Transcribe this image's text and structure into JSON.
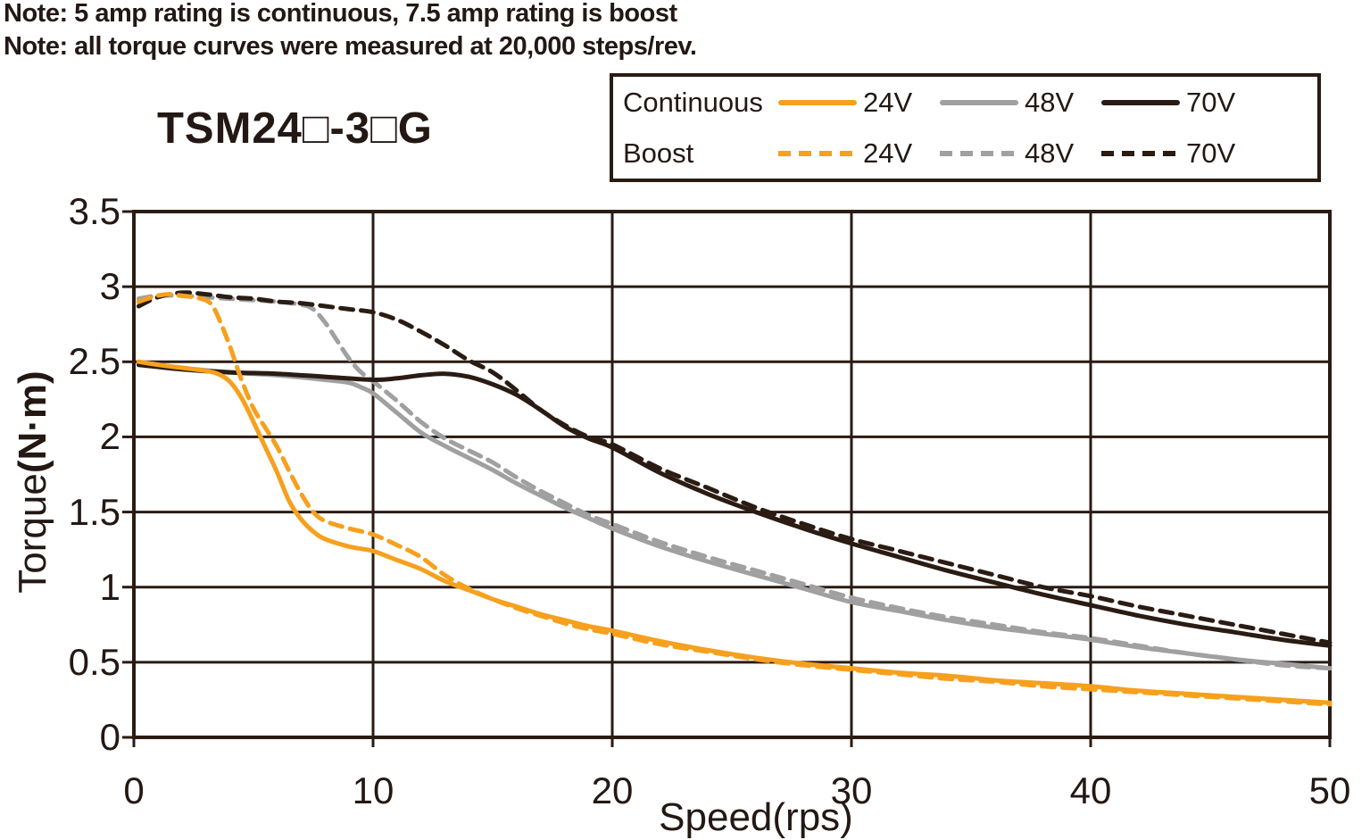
{
  "notes": [
    "Note: 5 amp rating is continuous, 7.5 amp rating is boost",
    "Note: all torque curves were measured at 20,000 steps/rev."
  ],
  "title": "TSM24□-3□G",
  "axis": {
    "y_prefix": "Torque",
    "y_bold": "(N·m)"
  },
  "colors": {
    "orange_24v": "#f6a01e",
    "gray_48v": "#a0a0a0",
    "dark_70v": "#2a1b13",
    "text": "#231813",
    "grid": "#2a1b13"
  },
  "legend": {
    "rows": [
      {
        "label": "Continuous",
        "style": "solid",
        "entries": [
          {
            "label": "24V",
            "color": "#f6a01e"
          },
          {
            "label": "48V",
            "color": "#a0a0a0"
          },
          {
            "label": "70V",
            "color": "#2a1b13"
          }
        ]
      },
      {
        "label": "Boost",
        "style": "dashed",
        "entries": [
          {
            "label": "24V",
            "color": "#f6a01e"
          },
          {
            "label": "48V",
            "color": "#a0a0a0"
          },
          {
            "label": "70V",
            "color": "#2a1b13"
          }
        ]
      }
    ]
  },
  "chart_data": {
    "type": "line",
    "title": "TSM24□-3□G",
    "xlabel": "Speed(rps)",
    "ylabel": "Torque(N·m)",
    "xlim": [
      0,
      50
    ],
    "ylim": [
      0,
      3.5
    ],
    "xticks": [
      "0",
      "10",
      "20",
      "30",
      "40",
      "50"
    ],
    "yticks": [
      "3.5",
      "3",
      "2.5",
      "2",
      "1.5",
      "1",
      "0.5",
      "0"
    ],
    "grid": true,
    "legend_position": "top-right",
    "x_unit": "rps",
    "y_unit": "N·m",
    "series": [
      {
        "name": "Continuous 48V",
        "rating": "continuous",
        "voltage": "48V",
        "color": "#a0a0a0",
        "dash": false,
        "points": [
          [
            0.2,
            2.5
          ],
          [
            2,
            2.46
          ],
          [
            4,
            2.43
          ],
          [
            6,
            2.41
          ],
          [
            8,
            2.38
          ],
          [
            9,
            2.36
          ],
          [
            9.5,
            2.33
          ],
          [
            10,
            2.29
          ],
          [
            11,
            2.16
          ],
          [
            12,
            2.03
          ],
          [
            13,
            1.94
          ],
          [
            14,
            1.86
          ],
          [
            15,
            1.78
          ],
          [
            16,
            1.69
          ],
          [
            17,
            1.61
          ],
          [
            18,
            1.53
          ],
          [
            19,
            1.46
          ],
          [
            20,
            1.39
          ],
          [
            22,
            1.27
          ],
          [
            24,
            1.17
          ],
          [
            26,
            1.08
          ],
          [
            28,
            0.99
          ],
          [
            30,
            0.9
          ],
          [
            32,
            0.84
          ],
          [
            34,
            0.78
          ],
          [
            36,
            0.73
          ],
          [
            38,
            0.69
          ],
          [
            40,
            0.65
          ],
          [
            42,
            0.6
          ],
          [
            44,
            0.56
          ],
          [
            46,
            0.52
          ],
          [
            48,
            0.49
          ],
          [
            50,
            0.46
          ]
        ]
      },
      {
        "name": "Boost 48V",
        "rating": "boost",
        "voltage": "48V",
        "color": "#a0a0a0",
        "dash": true,
        "points": [
          [
            0.2,
            2.92
          ],
          [
            1,
            2.94
          ],
          [
            2,
            2.94
          ],
          [
            3,
            2.93
          ],
          [
            4,
            2.92
          ],
          [
            5,
            2.91
          ],
          [
            6,
            2.9
          ],
          [
            7,
            2.88
          ],
          [
            7.5,
            2.85
          ],
          [
            8,
            2.76
          ],
          [
            8.5,
            2.64
          ],
          [
            9,
            2.52
          ],
          [
            9.5,
            2.43
          ],
          [
            10,
            2.37
          ],
          [
            11,
            2.24
          ],
          [
            12,
            2.1
          ],
          [
            13,
            1.99
          ],
          [
            14,
            1.91
          ],
          [
            15,
            1.83
          ],
          [
            16,
            1.73
          ],
          [
            17,
            1.64
          ],
          [
            18,
            1.56
          ],
          [
            19,
            1.48
          ],
          [
            20,
            1.42
          ],
          [
            22,
            1.3
          ],
          [
            24,
            1.2
          ],
          [
            26,
            1.11
          ],
          [
            28,
            1.02
          ],
          [
            30,
            0.93
          ],
          [
            32,
            0.86
          ],
          [
            34,
            0.8
          ],
          [
            36,
            0.75
          ],
          [
            38,
            0.7
          ],
          [
            40,
            0.66
          ],
          [
            42,
            0.61
          ],
          [
            44,
            0.56
          ],
          [
            46,
            0.52
          ],
          [
            48,
            0.48
          ],
          [
            50,
            0.46
          ]
        ]
      },
      {
        "name": "Continuous 70V",
        "rating": "continuous",
        "voltage": "70V",
        "color": "#2a1b13",
        "dash": false,
        "points": [
          [
            0.2,
            2.48
          ],
          [
            2,
            2.45
          ],
          [
            4,
            2.43
          ],
          [
            6,
            2.42
          ],
          [
            8,
            2.4
          ],
          [
            10,
            2.38
          ],
          [
            11,
            2.39
          ],
          [
            12,
            2.41
          ],
          [
            13,
            2.42
          ],
          [
            14,
            2.4
          ],
          [
            15,
            2.35
          ],
          [
            16,
            2.28
          ],
          [
            17,
            2.18
          ],
          [
            18,
            2.07
          ],
          [
            19,
            1.99
          ],
          [
            20,
            1.93
          ],
          [
            22,
            1.76
          ],
          [
            24,
            1.62
          ],
          [
            26,
            1.5
          ],
          [
            28,
            1.39
          ],
          [
            30,
            1.29
          ],
          [
            32,
            1.2
          ],
          [
            34,
            1.11
          ],
          [
            36,
            1.03
          ],
          [
            38,
            0.95
          ],
          [
            40,
            0.88
          ],
          [
            42,
            0.81
          ],
          [
            44,
            0.75
          ],
          [
            46,
            0.7
          ],
          [
            48,
            0.65
          ],
          [
            50,
            0.61
          ]
        ]
      },
      {
        "name": "Boost 70V",
        "rating": "boost",
        "voltage": "70V",
        "color": "#2a1b13",
        "dash": true,
        "points": [
          [
            0.2,
            2.87
          ],
          [
            1,
            2.93
          ],
          [
            2,
            2.96
          ],
          [
            3,
            2.95
          ],
          [
            4,
            2.93
          ],
          [
            5,
            2.92
          ],
          [
            6,
            2.9
          ],
          [
            7,
            2.89
          ],
          [
            8,
            2.87
          ],
          [
            9,
            2.85
          ],
          [
            10,
            2.83
          ],
          [
            11,
            2.78
          ],
          [
            12,
            2.7
          ],
          [
            13,
            2.61
          ],
          [
            14,
            2.51
          ],
          [
            15,
            2.43
          ],
          [
            16,
            2.31
          ],
          [
            17,
            2.18
          ],
          [
            18,
            2.08
          ],
          [
            19,
            2.0
          ],
          [
            20,
            1.95
          ],
          [
            22,
            1.79
          ],
          [
            24,
            1.66
          ],
          [
            26,
            1.53
          ],
          [
            28,
            1.42
          ],
          [
            30,
            1.32
          ],
          [
            32,
            1.24
          ],
          [
            34,
            1.16
          ],
          [
            36,
            1.08
          ],
          [
            38,
            1.0
          ],
          [
            40,
            0.94
          ],
          [
            42,
            0.87
          ],
          [
            44,
            0.81
          ],
          [
            46,
            0.75
          ],
          [
            48,
            0.69
          ],
          [
            50,
            0.63
          ]
        ]
      },
      {
        "name": "Continuous 24V",
        "rating": "continuous",
        "voltage": "24V",
        "color": "#f6a01e",
        "dash": false,
        "points": [
          [
            0.2,
            2.5
          ],
          [
            1,
            2.48
          ],
          [
            2,
            2.46
          ],
          [
            3,
            2.44
          ],
          [
            3.5,
            2.42
          ],
          [
            4,
            2.37
          ],
          [
            4.5,
            2.26
          ],
          [
            5,
            2.1
          ],
          [
            5.5,
            1.93
          ],
          [
            6,
            1.76
          ],
          [
            6.5,
            1.57
          ],
          [
            7,
            1.45
          ],
          [
            7.5,
            1.37
          ],
          [
            8,
            1.32
          ],
          [
            9,
            1.27
          ],
          [
            10,
            1.24
          ],
          [
            11,
            1.18
          ],
          [
            12,
            1.12
          ],
          [
            13,
            1.04
          ],
          [
            14,
            0.98
          ],
          [
            15,
            0.92
          ],
          [
            16,
            0.87
          ],
          [
            17,
            0.82
          ],
          [
            18,
            0.78
          ],
          [
            19,
            0.74
          ],
          [
            20,
            0.71
          ],
          [
            22,
            0.64
          ],
          [
            24,
            0.58
          ],
          [
            26,
            0.53
          ],
          [
            28,
            0.49
          ],
          [
            30,
            0.46
          ],
          [
            32,
            0.43
          ],
          [
            34,
            0.41
          ],
          [
            36,
            0.38
          ],
          [
            38,
            0.36
          ],
          [
            40,
            0.34
          ],
          [
            42,
            0.31
          ],
          [
            44,
            0.29
          ],
          [
            46,
            0.27
          ],
          [
            48,
            0.25
          ],
          [
            50,
            0.23
          ]
        ]
      },
      {
        "name": "Boost 24V",
        "rating": "boost",
        "voltage": "24V",
        "color": "#f6a01e",
        "dash": true,
        "points": [
          [
            0.2,
            2.9
          ],
          [
            1,
            2.94
          ],
          [
            1.5,
            2.95
          ],
          [
            2,
            2.94
          ],
          [
            2.5,
            2.93
          ],
          [
            3,
            2.91
          ],
          [
            3.3,
            2.87
          ],
          [
            3.6,
            2.77
          ],
          [
            4,
            2.61
          ],
          [
            4.5,
            2.38
          ],
          [
            5,
            2.19
          ],
          [
            5.5,
            2.06
          ],
          [
            6,
            1.93
          ],
          [
            6.5,
            1.77
          ],
          [
            7,
            1.62
          ],
          [
            7.5,
            1.5
          ],
          [
            8,
            1.44
          ],
          [
            9,
            1.39
          ],
          [
            10,
            1.35
          ],
          [
            11,
            1.28
          ],
          [
            12,
            1.2
          ],
          [
            13,
            1.08
          ],
          [
            14,
            0.99
          ],
          [
            15,
            0.92
          ],
          [
            16,
            0.86
          ],
          [
            17,
            0.81
          ],
          [
            18,
            0.76
          ],
          [
            19,
            0.72
          ],
          [
            20,
            0.69
          ],
          [
            22,
            0.62
          ],
          [
            24,
            0.57
          ],
          [
            26,
            0.52
          ],
          [
            28,
            0.48
          ],
          [
            30,
            0.45
          ],
          [
            32,
            0.42
          ],
          [
            34,
            0.39
          ],
          [
            36,
            0.37
          ],
          [
            38,
            0.34
          ],
          [
            40,
            0.32
          ],
          [
            42,
            0.3
          ],
          [
            44,
            0.28
          ],
          [
            46,
            0.26
          ],
          [
            48,
            0.24
          ],
          [
            50,
            0.22
          ]
        ]
      }
    ]
  }
}
